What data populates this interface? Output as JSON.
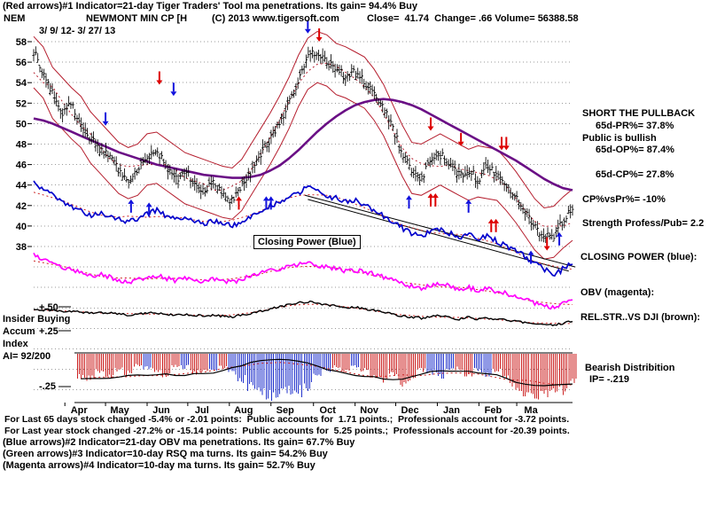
{
  "header": {
    "line1": "(Red arrows)#1 Indicator=21-day Tiger Traders' Tool ma penetrations. Its gain= 94.4% Buy",
    "ticker": "NEM",
    "title": "NEWMONT MIN CP [H",
    "copyright": "(C) 2013 www.tigersoft.com",
    "close_info": "Close=  41.74  Change= .66 Volume= 56388.58",
    "date_range": "3/ 9/ 12- 3/ 27/ 13"
  },
  "right_panel": {
    "short_call": "SHORT THE PULLBACK",
    "pr": "65d-PR%= 37.8%",
    "public": "Public is bullish",
    "op": "65d-OP%= 87.4%",
    "cp": "65d-CP%= 27.8%",
    "cpvspr": "CP%vsPr%= -10%",
    "strength": "Strength Profess/Pub= 2.2",
    "closing_power": "CLOSING POWER (blue):",
    "obv": "OBV (magenta):",
    "relstr": "REL.STR..VS DJI (brown):",
    "bearish1": "Bearish Distribition",
    "bearish2": "IP= -.219"
  },
  "left_panel": {
    "plus50": "+.50",
    "insider": "Insider Buying",
    "accum": "Accum",
    "plus25": "+.25",
    "index": "Index",
    "ai": "AI= 92/200",
    "minus25": "-.25"
  },
  "bottom": {
    "lines": [
      "For Last 65 days stock changed -5.4% or -2.01 points:  Public accounts for  1.71 points.;  Professionals account for -3.72 points.",
      "For Last year stock changed -27.2% or -15.14 points:  Public accounts for  5.25 points.;  Professionals account for -20.39 points.",
      "(Blue arrows)#2 Indicator=21-day OBV ma penetrations. Its gain= 67.7% Buy",
      "(Green arrows)#3 Indicator=10-day RSQ ma turns. Its gain= 54.2% Buy",
      "(Magenta arrows)#4 Indicator=10-day ma turns. Its gain= 52.7% Buy"
    ]
  },
  "chart_data": {
    "type": "line",
    "note": "daily OHLC price with red trading bands, purple long MA, blue Closing Power, magenta OBV, black Rel.Str vs DJI, red/blue Accumulation-Index hatched histogram; weekly-resolution values read from chart",
    "title": "NEWMONT MIN CP (NEM)  3/9/12 - 3/27/13",
    "ylim": [
      38,
      58
    ],
    "x_unit": "weeks since 3/9/2012",
    "price_ticks": [
      58,
      56,
      54,
      52,
      50,
      48,
      46,
      44,
      42,
      40,
      38
    ],
    "band_offset": 2.5,
    "label_box": "Closing Power (Blue)",
    "months": [
      {
        "label": "Apr",
        "week": 3.3
      },
      {
        "label": "May",
        "week": 7.6
      },
      {
        "label": "Jun",
        "week": 12.0
      },
      {
        "label": "Jul",
        "week": 16.3
      },
      {
        "label": "Aug",
        "week": 20.7
      },
      {
        "label": "Sep",
        "week": 25.1
      },
      {
        "label": "Oct",
        "week": 29.6
      },
      {
        "label": "Nov",
        "week": 34.0
      },
      {
        "label": "Dec",
        "week": 38.3
      },
      {
        "label": "Jan",
        "week": 42.7
      },
      {
        "label": "Feb",
        "week": 47.1
      },
      {
        "label": "Ma",
        "week": 51.1
      }
    ],
    "series": [
      {
        "name": "close_weekly",
        "color": "#000000",
        "values": [
          57.0,
          55.0,
          53.0,
          51.0,
          52.0,
          50.0,
          48.5,
          47.5,
          47.0,
          45.5,
          44.5,
          45.5,
          46.5,
          47.5,
          46.0,
          44.5,
          45.5,
          44.0,
          43.5,
          44.5,
          43.0,
          42.5,
          44.0,
          45.5,
          47.0,
          48.5,
          50.0,
          52.0,
          54.0,
          56.5,
          57.0,
          56.0,
          55.5,
          54.5,
          55.0,
          54.0,
          53.0,
          51.5,
          49.5,
          47.0,
          45.5,
          44.5,
          46.5,
          47.0,
          46.0,
          45.0,
          45.5,
          44.5,
          46.0,
          45.0,
          44.0,
          43.0,
          41.5,
          40.0,
          39.0,
          38.8,
          40.5,
          41.7
        ]
      },
      {
        "name": "ma_long",
        "color": "#6a0f85",
        "values": [
          50.5,
          50.3,
          50.0,
          49.6,
          49.2,
          48.8,
          48.4,
          48.0,
          47.6,
          47.2,
          46.9,
          46.6,
          46.3,
          46.0,
          45.8,
          45.6,
          45.4,
          45.2,
          45.0,
          44.9,
          44.8,
          44.7,
          44.7,
          44.8,
          45.0,
          45.4,
          45.9,
          46.6,
          47.4,
          48.3,
          49.2,
          50.0,
          50.7,
          51.3,
          51.8,
          52.1,
          52.3,
          52.4,
          52.3,
          52.1,
          51.8,
          51.4,
          50.9,
          50.4,
          49.9,
          49.4,
          48.9,
          48.4,
          47.9,
          47.4,
          46.9,
          46.4,
          45.8,
          45.2,
          44.6,
          44.1,
          43.7,
          43.5
        ]
      },
      {
        "name": "closing_power",
        "color": "#0000cc",
        "values": [
          44.2,
          43.6,
          43.0,
          42.4,
          42.0,
          41.4,
          41.0,
          41.3,
          41.0,
          40.6,
          40.3,
          40.8,
          41.2,
          41.5,
          41.0,
          40.6,
          41.0,
          40.5,
          40.2,
          40.6,
          40.2,
          40.0,
          40.5,
          41.0,
          41.5,
          42.0,
          42.4,
          42.8,
          43.2,
          43.8,
          43.5,
          43.0,
          42.7,
          42.3,
          42.5,
          42.0,
          41.6,
          41.0,
          40.4,
          39.8,
          39.3,
          39.0,
          39.5,
          39.8,
          39.3,
          38.8,
          39.2,
          38.7,
          39.0,
          38.5,
          38.0,
          37.5,
          37.0,
          36.4,
          35.8,
          35.2,
          35.8,
          36.3
        ]
      },
      {
        "name": "obv",
        "color": "#ff00ff",
        "values": [
          37.2,
          36.8,
          36.4,
          36.0,
          35.7,
          35.4,
          35.1,
          35.3,
          35.0,
          34.7,
          34.5,
          34.8,
          35.0,
          35.2,
          34.9,
          34.7,
          35.0,
          34.8,
          34.6,
          34.9,
          34.7,
          34.5,
          34.8,
          35.1,
          35.4,
          35.6,
          35.8,
          36.0,
          36.2,
          36.4,
          36.2,
          36.0,
          35.8,
          35.6,
          35.7,
          35.5,
          35.3,
          35.0,
          34.7,
          34.4,
          34.1,
          33.9,
          34.2,
          34.4,
          34.1,
          33.8,
          34.0,
          33.7,
          33.9,
          33.6,
          33.4,
          33.1,
          32.8,
          32.5,
          32.2,
          32.0,
          32.4,
          32.7
        ]
      },
      {
        "name": "rel_str_vs_dji",
        "color": "#000000",
        "values": [
          31.9,
          31.8,
          31.8,
          31.7,
          31.7,
          31.6,
          31.5,
          31.6,
          31.5,
          31.4,
          31.3,
          31.4,
          31.5,
          31.5,
          31.4,
          31.3,
          31.4,
          31.3,
          31.2,
          31.3,
          31.2,
          31.1,
          31.3,
          31.5,
          31.7,
          31.9,
          32.1,
          32.3,
          32.5,
          32.6,
          32.5,
          32.3,
          32.2,
          32.0,
          32.1,
          31.9,
          31.8,
          31.6,
          31.4,
          31.2,
          31.1,
          31.0,
          31.2,
          31.3,
          31.1,
          30.9,
          31.1,
          30.9,
          31.0,
          30.9,
          30.8,
          30.7,
          30.6,
          30.5,
          30.4,
          30.3,
          30.5,
          30.7
        ]
      },
      {
        "name": "accum_index",
        "color_pos": "#2233cc",
        "color_neg": "#cc2222",
        "values": [
          -0.45,
          -0.6,
          -0.35,
          -0.55,
          -0.3,
          -0.5,
          -0.55,
          -0.35,
          -0.45,
          -0.3,
          -0.4,
          -0.15,
          0.25,
          -0.3,
          -0.45,
          -0.2,
          0.2,
          -0.35,
          -0.3,
          0.25,
          -0.2,
          0.35,
          0.55,
          0.75,
          0.9,
          1.0,
          0.95,
          0.85,
          0.9,
          0.75,
          0.5,
          0.3,
          -0.2,
          -0.35,
          0.2,
          -0.3,
          -0.45,
          -0.55,
          -0.4,
          -0.65,
          -0.5,
          -0.3,
          0.35,
          0.45,
          0.3,
          -0.25,
          -0.4,
          0.3,
          0.45,
          -0.3,
          -0.55,
          -0.75,
          -0.9,
          -1.0,
          -0.95,
          -1.0,
          -0.85,
          -0.6
        ]
      }
    ],
    "trendlines": [
      {
        "from": [
          28.7,
          43.0
        ],
        "to": [
          57.3,
          36.0
        ]
      },
      {
        "from": [
          29.0,
          42.6
        ],
        "to": [
          56.6,
          35.6
        ]
      }
    ],
    "arrows": [
      {
        "week": 7.6,
        "value": 49.8,
        "dir": "down",
        "color": "blue"
      },
      {
        "week": 13.3,
        "value": 53.8,
        "dir": "down",
        "color": "red"
      },
      {
        "week": 14.8,
        "value": 52.7,
        "dir": "down",
        "color": "blue"
      },
      {
        "week": 29.0,
        "value": 58.8,
        "dir": "down",
        "color": "blue"
      },
      {
        "week": 30.2,
        "value": 58.0,
        "dir": "down",
        "color": "red"
      },
      {
        "week": 42.0,
        "value": 49.3,
        "dir": "down",
        "color": "red"
      },
      {
        "week": 45.2,
        "value": 47.8,
        "dir": "down",
        "color": "red"
      },
      {
        "week": 49.5,
        "value": 47.4,
        "dir": "down",
        "color": "red"
      },
      {
        "week": 50.0,
        "value": 47.4,
        "dir": "down",
        "color": "red"
      },
      {
        "week": 54.3,
        "value": 37.6,
        "dir": "down",
        "color": "red"
      },
      {
        "week": 10.3,
        "value": 42.6,
        "dir": "up",
        "color": "blue"
      },
      {
        "week": 12.2,
        "value": 42.3,
        "dir": "up",
        "color": "blue"
      },
      {
        "week": 21.7,
        "value": 42.9,
        "dir": "up",
        "color": "red"
      },
      {
        "week": 24.6,
        "value": 42.9,
        "dir": "up",
        "color": "blue"
      },
      {
        "week": 25.1,
        "value": 42.9,
        "dir": "up",
        "color": "blue"
      },
      {
        "week": 39.7,
        "value": 43.0,
        "dir": "up",
        "color": "blue"
      },
      {
        "week": 42.0,
        "value": 43.2,
        "dir": "up",
        "color": "red"
      },
      {
        "week": 42.5,
        "value": 43.2,
        "dir": "up",
        "color": "red"
      },
      {
        "week": 46.0,
        "value": 42.6,
        "dir": "up",
        "color": "blue"
      },
      {
        "week": 48.4,
        "value": 40.7,
        "dir": "up",
        "color": "red"
      },
      {
        "week": 48.9,
        "value": 40.7,
        "dir": "up",
        "color": "red"
      },
      {
        "week": 52.6,
        "value": 37.6,
        "dir": "up",
        "color": "blue"
      },
      {
        "week": 55.6,
        "value": 39.4,
        "dir": "up",
        "color": "blue"
      }
    ]
  }
}
